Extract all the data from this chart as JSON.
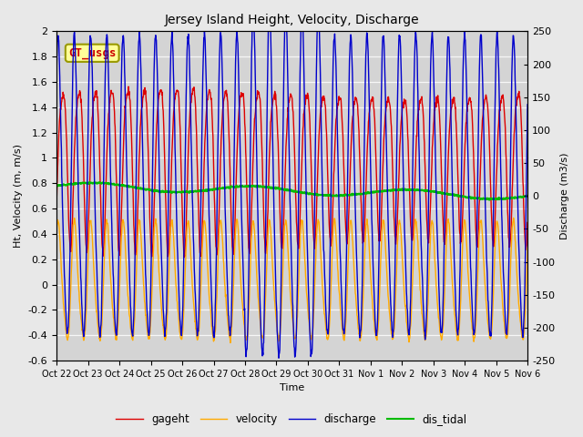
{
  "title": "Jersey Island Height, Velocity, Discharge",
  "xlabel": "Time",
  "ylabel_left": "Ht, Velocity (m, m/s)",
  "ylabel_right": "Discharge (m3/s)",
  "ylim_left": [
    -0.6,
    2.0
  ],
  "ylim_right": [
    -250,
    250
  ],
  "yticks_left": [
    -0.6,
    -0.4,
    -0.2,
    0.0,
    0.2,
    0.4,
    0.6,
    0.8,
    1.0,
    1.2,
    1.4,
    1.6,
    1.8,
    2.0
  ],
  "yticks_right": [
    -250,
    -200,
    -150,
    -100,
    -50,
    0,
    50,
    100,
    150,
    200,
    250
  ],
  "background_color": "#e8e8e8",
  "plot_bg_color": "#d4d4d4",
  "legend_entries": [
    "gageht",
    "velocity",
    "discharge",
    "dis_tidal"
  ],
  "annotation_text": "GT_usgs",
  "annotation_color": "#cc0000",
  "annotation_bg": "#ffff99",
  "annotation_border": "#999900",
  "num_days": 15,
  "tidal_period_hours": 12.42,
  "line_colors": {
    "gageht": "#dd0000",
    "velocity": "#ffaa00",
    "discharge": "#0000cc",
    "dis_tidal": "#00bb00"
  },
  "line_widths": {
    "gageht": 1.0,
    "velocity": 1.0,
    "discharge": 1.0,
    "dis_tidal": 1.5
  }
}
